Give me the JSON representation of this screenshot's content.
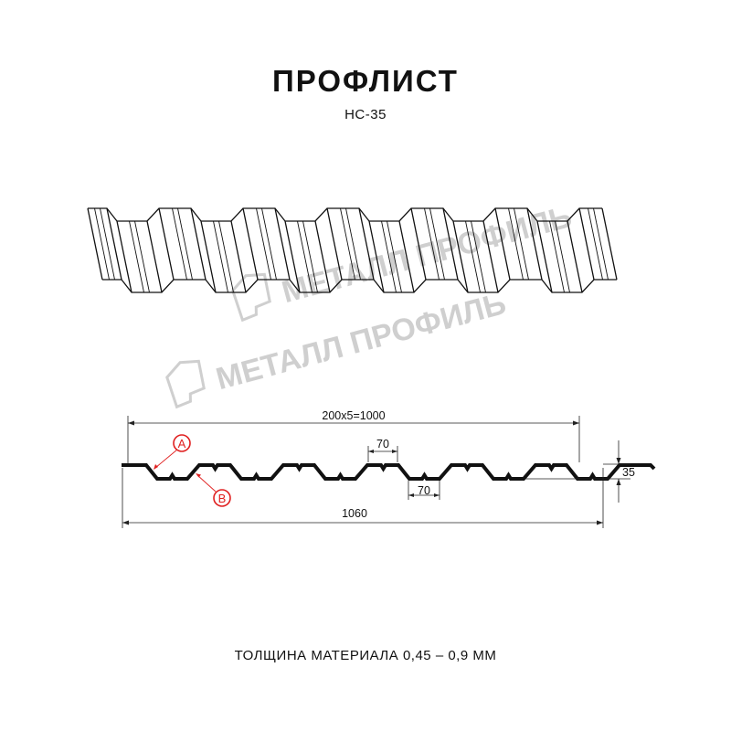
{
  "header": {
    "title": "ПРОФЛИСТ",
    "subtitle": "НС-35"
  },
  "watermark": {
    "text": "МЕТАЛЛ ПРОФИЛЬ",
    "color": "#cfcfcf"
  },
  "drawing": {
    "dimensions": {
      "pitch": "200x5=1000",
      "top_flat": "70",
      "bottom_flat": "70",
      "height": "35",
      "total_width": "1060"
    },
    "callouts": [
      {
        "label": "A",
        "color": "#e02020"
      },
      {
        "label": "B",
        "color": "#e02020"
      }
    ]
  },
  "footer": {
    "thickness": "ТОЛЩИНА МАТЕРИАЛА 0,45 – 0,9 ММ"
  }
}
